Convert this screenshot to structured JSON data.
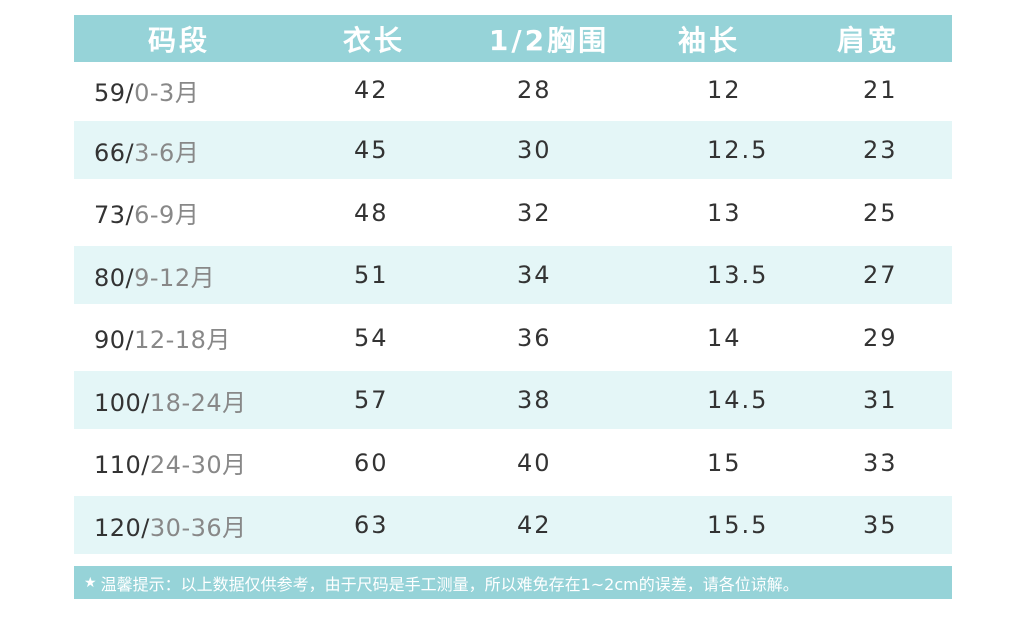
{
  "table": {
    "headers": [
      "码段",
      "衣长",
      "1/2胸围",
      "袖长",
      "肩宽"
    ],
    "rows": [
      {
        "size": "59/",
        "age": "0-3月",
        "length": "42",
        "chest": "28",
        "sleeve": "12",
        "shoulder": "21"
      },
      {
        "size": "66/",
        "age": "3-6月",
        "length": "45",
        "chest": "30",
        "sleeve": "12.5",
        "shoulder": "23"
      },
      {
        "size": "73/",
        "age": "6-9月",
        "length": "48",
        "chest": "32",
        "sleeve": "13",
        "shoulder": "25"
      },
      {
        "size": "80/",
        "age": "9-12月",
        "length": "51",
        "chest": "34",
        "sleeve": "13.5",
        "shoulder": "27"
      },
      {
        "size": "90/",
        "age": "12-18月",
        "length": "54",
        "chest": "36",
        "sleeve": "14",
        "shoulder": "29"
      },
      {
        "size": "100/",
        "age": "18-24月",
        "length": "57",
        "chest": "38",
        "sleeve": "14.5",
        "shoulder": "31"
      },
      {
        "size": "110/",
        "age": "24-30月",
        "length": "60",
        "chest": "40",
        "sleeve": "15",
        "shoulder": "33"
      },
      {
        "size": "120/",
        "age": "30-36月",
        "length": "63",
        "chest": "42",
        "sleeve": "15.5",
        "shoulder": "35"
      }
    ]
  },
  "note": {
    "star": "★",
    "text": "温馨提示：以上数据仅供参考，由于尺码是手工测量，所以难免存在1~2cm的误差，请各位谅解。"
  },
  "colors": {
    "header_bg": "#96d3d8",
    "shaded_row_bg": "#e4f6f7",
    "text": "#333333",
    "age_text": "#888888"
  }
}
